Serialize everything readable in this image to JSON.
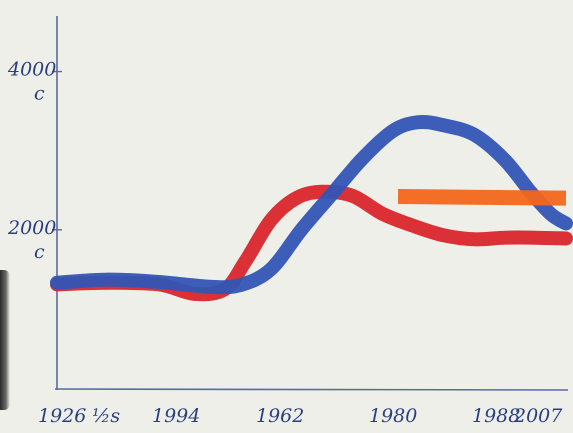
{
  "chart_data": {
    "type": "line",
    "title": "",
    "xlabel": "",
    "ylabel": "",
    "x_ticks": [
      "1926",
      "½s",
      "1994",
      "1962",
      "1980",
      "1988",
      "2007"
    ],
    "y_ticks": [
      {
        "value": 4000,
        "label": "4000",
        "unit": "c"
      },
      {
        "value": 2000,
        "label": "2000",
        "unit": "c"
      }
    ],
    "ylim": [
      0,
      4500
    ],
    "series": [
      {
        "color": "#3155b6",
        "points": [
          [
            0.0,
            1330
          ],
          [
            0.1,
            1370
          ],
          [
            0.2,
            1340
          ],
          [
            0.3,
            1280
          ],
          [
            0.36,
            1300
          ],
          [
            0.42,
            1500
          ],
          [
            0.48,
            2000
          ],
          [
            0.54,
            2450
          ],
          [
            0.6,
            2900
          ],
          [
            0.66,
            3250
          ],
          [
            0.71,
            3360
          ],
          [
            0.76,
            3320
          ],
          [
            0.82,
            3200
          ],
          [
            0.88,
            2880
          ],
          [
            0.93,
            2480
          ],
          [
            0.97,
            2200
          ],
          [
            1.0,
            2080
          ]
        ]
      },
      {
        "color": "#d9262c",
        "points": [
          [
            0.0,
            1310
          ],
          [
            0.1,
            1330
          ],
          [
            0.2,
            1310
          ],
          [
            0.27,
            1190
          ],
          [
            0.33,
            1250
          ],
          [
            0.37,
            1600
          ],
          [
            0.42,
            2120
          ],
          [
            0.47,
            2400
          ],
          [
            0.52,
            2480
          ],
          [
            0.58,
            2430
          ],
          [
            0.64,
            2200
          ],
          [
            0.7,
            2050
          ],
          [
            0.76,
            1930
          ],
          [
            0.82,
            1880
          ],
          [
            0.88,
            1900
          ],
          [
            0.94,
            1900
          ],
          [
            1.0,
            1890
          ]
        ]
      },
      {
        "color": "#f2661c",
        "points": [
          [
            0.67,
            2420
          ],
          [
            1.0,
            2400
          ]
        ]
      }
    ]
  }
}
